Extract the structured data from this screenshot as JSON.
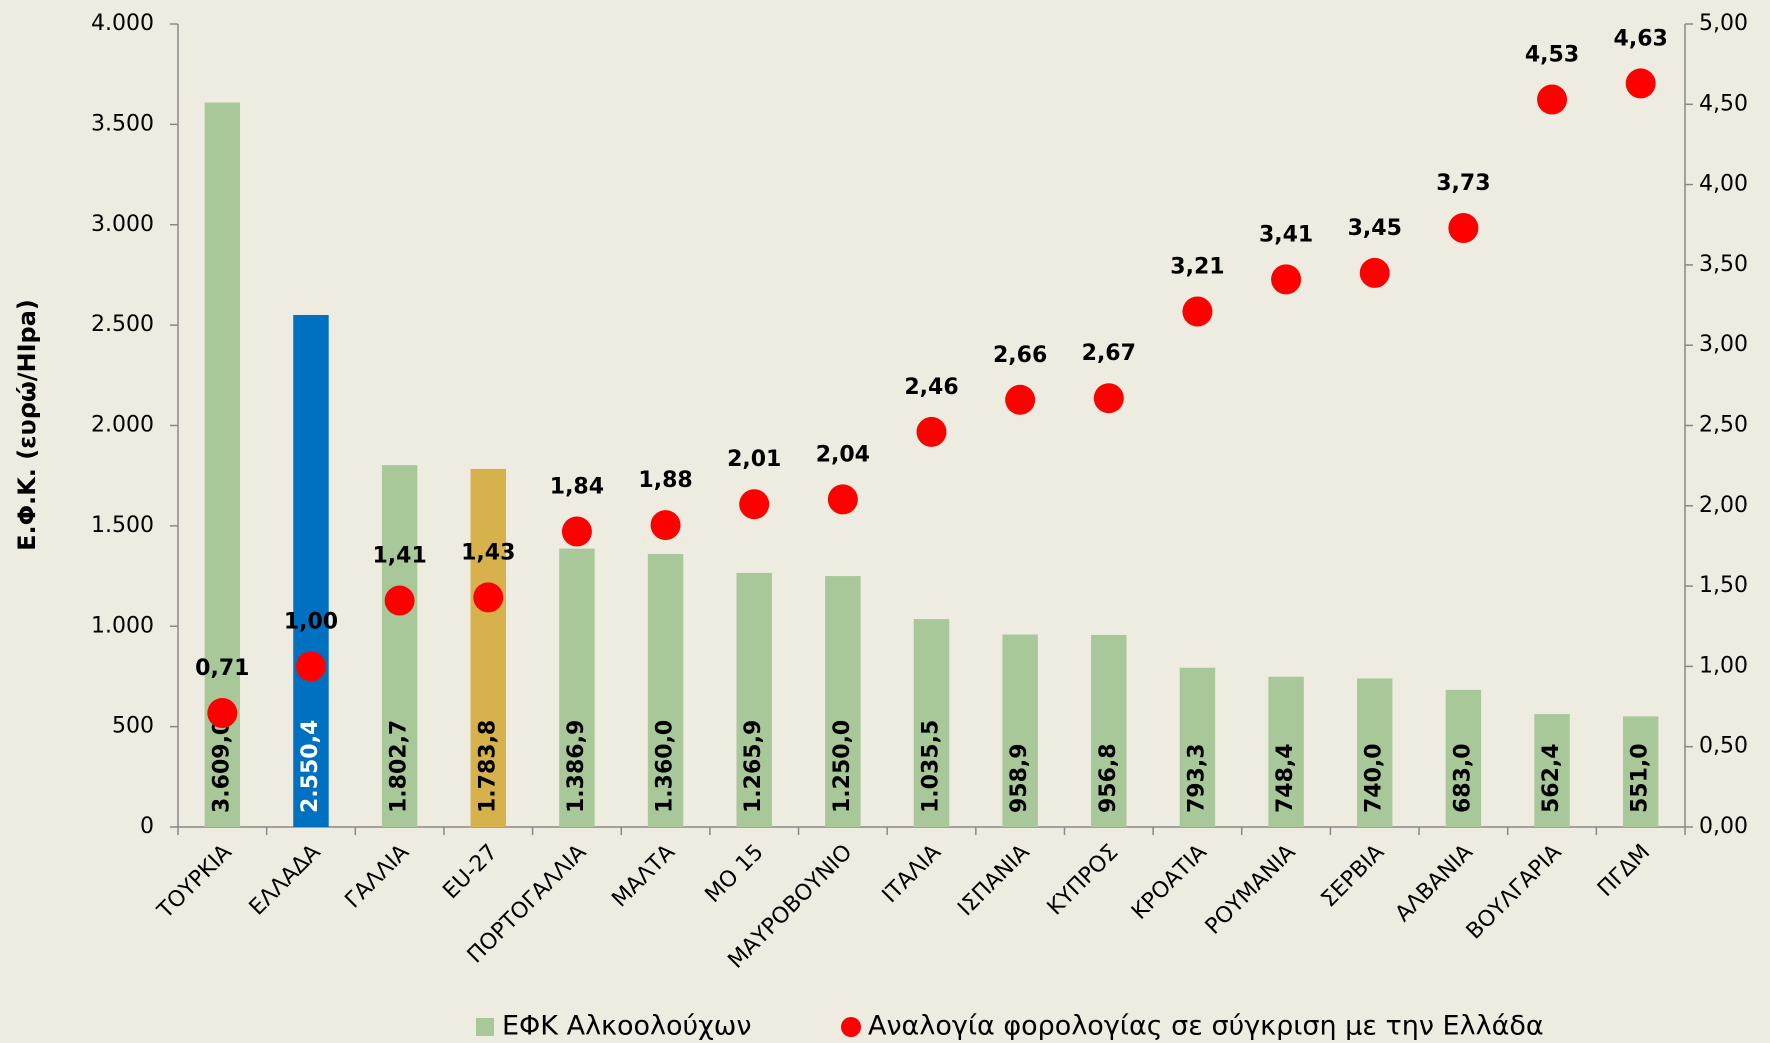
{
  "chart_data": {
    "type": "bar",
    "ylabel": "Ε.Φ.Κ. (ευρώ/ΗΙpa)",
    "categories": [
      "ΤΟΥΡΚΙΑ",
      "ΕΛΛΑΔΑ",
      "ΓΑΛΛΙΑ",
      "EU-27",
      "ΠΟΡΤΟΓΑΛΛΙΑ",
      "ΜΑΛΤΑ",
      "ΜΟ 15",
      "ΜΑΥΡΟΒΟΥΝΙΟ",
      "ΙΤΑΛΙΑ",
      "ΙΣΠΑΝΙΑ",
      "ΚΥΠΡΟΣ",
      "ΚΡΟΑΤΙΑ",
      "ΡΟΥΜΑΝΙΑ",
      "ΣΕΡΒΙΑ",
      "ΑΛΒΑΝΙΑ",
      "ΒΟΥΛΓΑΡΙΑ",
      "ΠΓΔΜ"
    ],
    "series": [
      {
        "name": "ΕΦΚ Αλκοολούχων",
        "type": "bar",
        "color": "#a9c89a",
        "colors": [
          "#a9c89a",
          "#0070c0",
          "#a9c89a",
          "#d6b14c",
          "#a9c89a",
          "#a9c89a",
          "#a9c89a",
          "#a9c89a",
          "#a9c89a",
          "#a9c89a",
          "#a9c89a",
          "#a9c89a",
          "#a9c89a",
          "#a9c89a",
          "#a9c89a",
          "#a9c89a",
          "#a9c89a"
        ],
        "values": [
          3609.0,
          2550.4,
          1802.7,
          1783.8,
          1386.9,
          1360.0,
          1265.9,
          1250.0,
          1035.5,
          958.9,
          956.8,
          793.3,
          748.4,
          740.0,
          683.0,
          562.4,
          551.0
        ],
        "value_labels": [
          "3.609,0",
          "2.550,4",
          "1.802,7",
          "1.783,8",
          "1.386,9",
          "1.360,0",
          "1.265,9",
          "1.250,0",
          "1.035,5",
          "958,9",
          "956,8",
          "793,3",
          "748,4",
          "740,0",
          "683,0",
          "562,4",
          "551,0"
        ]
      },
      {
        "name": "Αναλογία φορολογίας σε σύγκριση με την Ελλάδα",
        "type": "scatter",
        "axis": "y2",
        "color": "#ff0000",
        "values": [
          0.71,
          1.0,
          1.41,
          1.43,
          1.84,
          1.88,
          2.01,
          2.04,
          2.46,
          2.66,
          2.67,
          3.21,
          3.41,
          3.45,
          3.73,
          4.53,
          4.63
        ],
        "value_labels": [
          "0,71",
          "1,00",
          "1,41",
          "1,43",
          "1,84",
          "1,88",
          "2,01",
          "2,04",
          "2,46",
          "2,66",
          "2,67",
          "3,21",
          "3,41",
          "3,45",
          "3,73",
          "4,53",
          "4,63"
        ]
      }
    ],
    "ylim": [
      0,
      4000
    ],
    "yticks": [
      {
        "value": 0,
        "label": "0"
      },
      {
        "value": 500,
        "label": "500"
      },
      {
        "value": 1000,
        "label": "1.000"
      },
      {
        "value": 1500,
        "label": "1.500"
      },
      {
        "value": 2000,
        "label": "2.000"
      },
      {
        "value": 2500,
        "label": "2.500"
      },
      {
        "value": 3000,
        "label": "3.000"
      },
      {
        "value": 3500,
        "label": "3.500"
      },
      {
        "value": 4000,
        "label": "4.000"
      }
    ],
    "y2lim": [
      0,
      5
    ],
    "y2ticks": [
      {
        "value": 0,
        "label": "0,00"
      },
      {
        "value": 0.5,
        "label": "0,50"
      },
      {
        "value": 1,
        "label": "1,00"
      },
      {
        "value": 1.5,
        "label": "1,50"
      },
      {
        "value": 2,
        "label": "2,00"
      },
      {
        "value": 2.5,
        "label": "2,50"
      },
      {
        "value": 3,
        "label": "3,00"
      },
      {
        "value": 3.5,
        "label": "3,50"
      },
      {
        "value": 4,
        "label": "4,00"
      },
      {
        "value": 4.5,
        "label": "4,50"
      },
      {
        "value": 5,
        "label": "5,00"
      }
    ],
    "legend": "bottom"
  }
}
